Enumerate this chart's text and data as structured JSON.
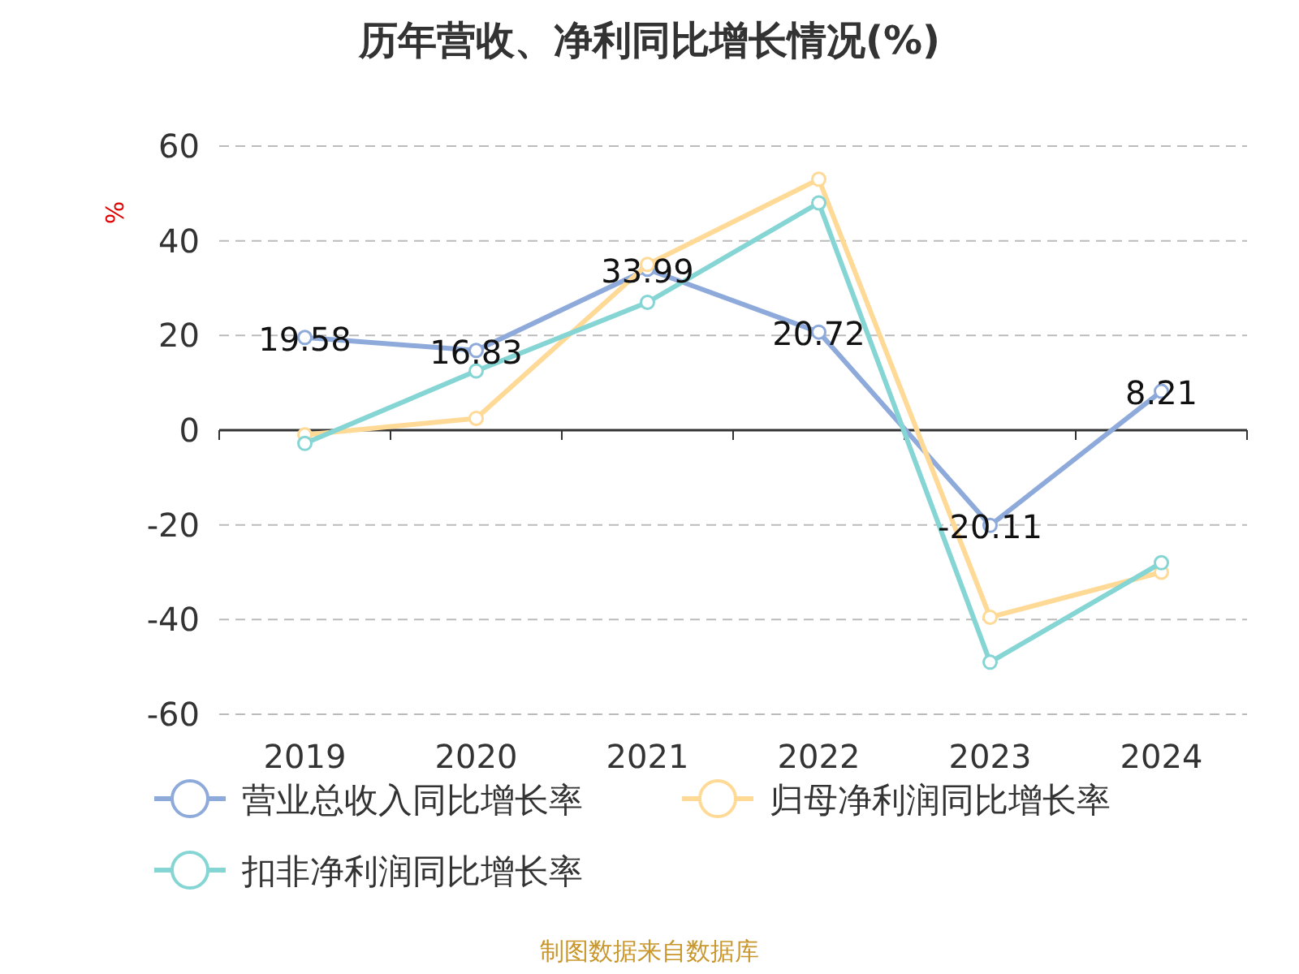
{
  "chart_data": {
    "type": "line",
    "title": "历年营收、净利同比增长情况(%)",
    "ylabel": "%",
    "categories": [
      "2019",
      "2020",
      "2021",
      "2022",
      "2023",
      "2024"
    ],
    "ylim": [
      -60,
      60
    ],
    "yticks": [
      -60,
      -40,
      -20,
      0,
      20,
      40,
      60
    ],
    "grid": "y",
    "legend": "bottom",
    "marker": "circle",
    "line_style": "solid",
    "series": [
      {
        "name": "营业总收入同比增长率",
        "color": "#8eaadb",
        "values": [
          19.58,
          16.83,
          33.99,
          20.72,
          -20.11,
          8.21
        ],
        "value_labels": [
          "19.58",
          "16.83",
          "33.99",
          "20.72",
          "-20.11",
          "8.21"
        ]
      },
      {
        "name": "归母净利润同比增长率",
        "color": "#ffd996",
        "values": [
          -1,
          2.5,
          35,
          53,
          -39.5,
          -30
        ]
      },
      {
        "name": "扣非净利润同比增长率",
        "color": "#86d5d5",
        "values": [
          -2.8,
          12.5,
          27,
          48,
          -49,
          -28
        ]
      }
    ],
    "annotations": [
      "制图数据来自数据库"
    ]
  }
}
